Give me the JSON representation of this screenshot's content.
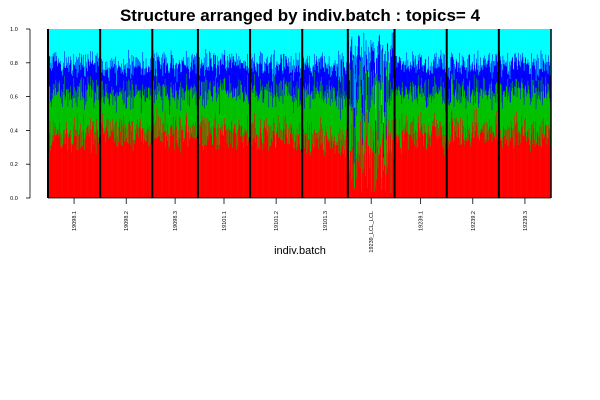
{
  "chart_data": {
    "type": "bar",
    "stacked": true,
    "title": "Structure arranged by indiv.batch : topics= 4",
    "xlabel": "indiv.batch",
    "ylabel": "",
    "ylim": [
      0,
      1
    ],
    "yticks": [
      "0.0",
      "0.2",
      "0.4",
      "0.6",
      "0.8",
      "1.0"
    ],
    "groups": [
      "19098.1",
      "19098.2",
      "19098.3",
      "19101.1",
      "19101.2",
      "19101.3",
      "19239_LCL_LCL",
      "19239.1",
      "19239.2",
      "19239.3"
    ],
    "group_sample_counts": [
      96,
      96,
      84,
      96,
      96,
      84,
      86,
      96,
      96,
      96
    ],
    "series": [
      {
        "name": "",
        "color": "#ff0000",
        "mean_proportion": [
          0.38,
          0.39,
          0.4,
          0.38,
          0.38,
          0.35,
          0.28,
          0.39,
          0.4,
          0.39
        ]
      },
      {
        "name": "",
        "color": "#00c000",
        "mean_proportion": [
          0.25,
          0.23,
          0.23,
          0.25,
          0.25,
          0.27,
          0.35,
          0.24,
          0.23,
          0.24
        ]
      },
      {
        "name": "",
        "color": "#0000ff",
        "mean_proportion": [
          0.17,
          0.16,
          0.17,
          0.17,
          0.16,
          0.17,
          0.22,
          0.17,
          0.17,
          0.16
        ]
      },
      {
        "name": "",
        "color": "#00ffff",
        "mean_proportion": [
          0.2,
          0.22,
          0.2,
          0.2,
          0.21,
          0.21,
          0.15,
          0.2,
          0.2,
          0.21
        ]
      }
    ],
    "grid": false,
    "legend": "none"
  }
}
